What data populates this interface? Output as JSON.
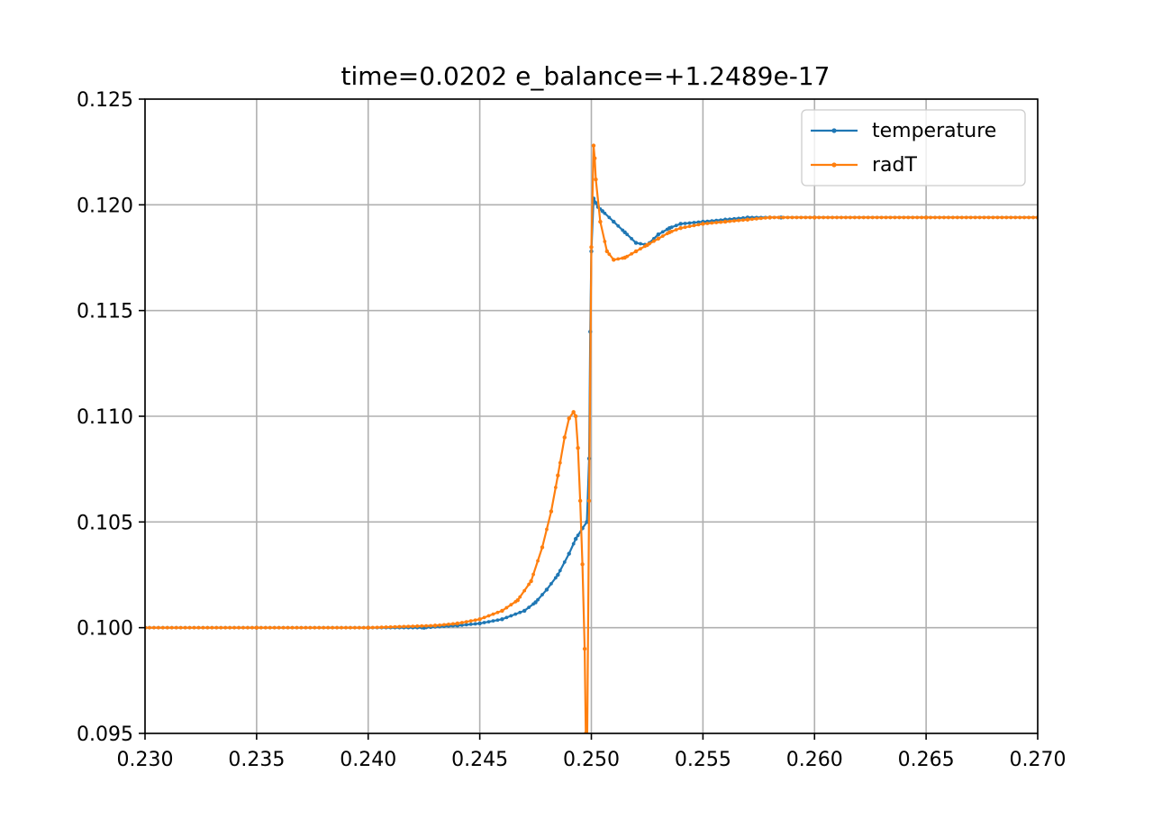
{
  "chart_data": {
    "type": "line",
    "title": "time=0.0202 e_balance=+1.2489e-17",
    "xlabel": "",
    "ylabel": "",
    "xlim": [
      0.23,
      0.27
    ],
    "ylim": [
      0.095,
      0.125
    ],
    "xticks": [
      0.23,
      0.235,
      0.24,
      0.245,
      0.25,
      0.255,
      0.26,
      0.265,
      0.27
    ],
    "xtick_labels": [
      "0.230",
      "0.235",
      "0.240",
      "0.245",
      "0.250",
      "0.255",
      "0.260",
      "0.265",
      "0.270"
    ],
    "yticks": [
      0.095,
      0.1,
      0.105,
      0.11,
      0.115,
      0.12,
      0.125
    ],
    "ytick_labels": [
      "0.095",
      "0.100",
      "0.105",
      "0.110",
      "0.115",
      "0.120",
      "0.125"
    ],
    "grid": true,
    "legend_position": "top-right",
    "markers": "small dots",
    "series": [
      {
        "name": "temperature",
        "color": "#1f77b4",
        "x": [
          0.23,
          0.235,
          0.24,
          0.2425,
          0.244,
          0.245,
          0.246,
          0.247,
          0.2475,
          0.248,
          0.2485,
          0.249,
          0.2493,
          0.2496,
          0.2498,
          0.2499,
          0.24995,
          0.25,
          0.2501,
          0.2503,
          0.2505,
          0.251,
          0.2515,
          0.252,
          0.2525,
          0.253,
          0.2535,
          0.254,
          0.255,
          0.256,
          0.257,
          0.258,
          0.2585,
          0.26,
          0.265,
          0.27
        ],
        "y": [
          0.1,
          0.1,
          0.1,
          0.1,
          0.1001,
          0.1002,
          0.1004,
          0.1008,
          0.1012,
          0.1018,
          0.1025,
          0.1035,
          0.1042,
          0.1047,
          0.105,
          0.108,
          0.114,
          0.1178,
          0.1203,
          0.1199,
          0.1197,
          0.1192,
          0.1187,
          0.1182,
          0.1181,
          0.1186,
          0.1189,
          0.1191,
          0.1192,
          0.1193,
          0.1194,
          0.1194,
          0.1194,
          0.1194,
          0.1194,
          0.1194
        ]
      },
      {
        "name": "radT",
        "color": "#ff7f0e",
        "x": [
          0.23,
          0.235,
          0.24,
          0.243,
          0.244,
          0.245,
          0.246,
          0.2467,
          0.2473,
          0.2478,
          0.2482,
          0.2485,
          0.2488,
          0.249,
          0.2492,
          0.2493,
          0.2494,
          0.2495,
          0.2496,
          0.2497,
          0.24975,
          0.2498,
          0.2499,
          0.25,
          0.2501,
          0.25015,
          0.2502,
          0.2504,
          0.2507,
          0.251,
          0.2515,
          0.252,
          0.2525,
          0.253,
          0.2535,
          0.254,
          0.255,
          0.256,
          0.257,
          0.258,
          0.26,
          0.265,
          0.27
        ],
        "y": [
          0.1,
          0.1,
          0.1,
          0.1001,
          0.1002,
          0.1004,
          0.1008,
          0.1013,
          0.1022,
          0.1038,
          0.1055,
          0.1072,
          0.109,
          0.1099,
          0.1102,
          0.11,
          0.1085,
          0.106,
          0.103,
          0.099,
          0.095,
          0.093,
          0.106,
          0.118,
          0.1228,
          0.1222,
          0.1212,
          0.1192,
          0.1178,
          0.1174,
          0.1175,
          0.1178,
          0.1181,
          0.1184,
          0.1187,
          0.1189,
          0.1191,
          0.1192,
          0.1193,
          0.1194,
          0.1194,
          0.1194,
          0.1194
        ]
      }
    ]
  }
}
